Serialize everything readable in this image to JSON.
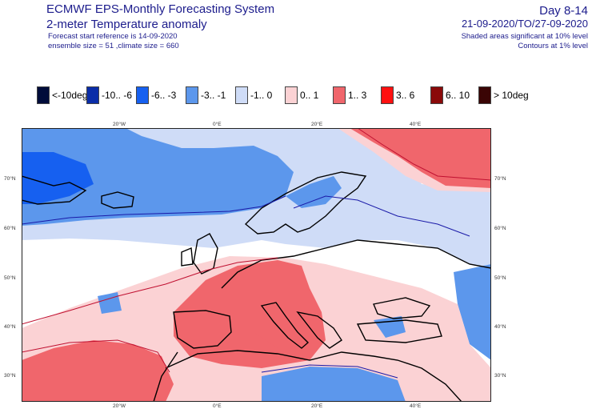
{
  "header": {
    "title": "ECMWF EPS-Monthly Forecasting System",
    "subtitle": "2-meter Temperature anomaly",
    "forecast_ref": "Forecast start reference is 14-09-2020",
    "ensemble": "ensemble size = 51  ,climate size = 660",
    "day_range": "Day 8-14",
    "period": "21-09-2020/TO/27-09-2020",
    "shading_note": "Shaded areas significant at 10% level",
    "contour_note": "Contours at 1% level"
  },
  "legend": [
    {
      "label": "<-10deg",
      "color": "#000c3a"
    },
    {
      "label": "-10.. -6",
      "color": "#0a2da8"
    },
    {
      "label": "-6.. -3",
      "color": "#1660f0"
    },
    {
      "label": "-3.. -1",
      "color": "#5c97ec"
    },
    {
      "label": "-1.. 0",
      "color": "#cfdcf7"
    },
    {
      "label": "0.. 1",
      "color": "#fbd2d4"
    },
    {
      "label": "1.. 3",
      "color": "#f0666c"
    },
    {
      "label": "3.. 6",
      "color": "#ff1010"
    },
    {
      "label": "6.. 10",
      "color": "#8a0a0a"
    },
    {
      "label": "> 10deg",
      "color": "#3a0505"
    }
  ],
  "axes": {
    "lon_top": [
      "20°W",
      "0°E",
      "20°E",
      "40°E"
    ],
    "lon_bottom": [
      "20°W",
      "0°E",
      "20°E",
      "40°E"
    ],
    "lat_left": [
      "70°N",
      "60°N",
      "50°N",
      "40°N",
      "30°N"
    ],
    "lat_right": [
      "70°N",
      "60°N",
      "50°N",
      "40°N",
      "30°N"
    ]
  }
}
